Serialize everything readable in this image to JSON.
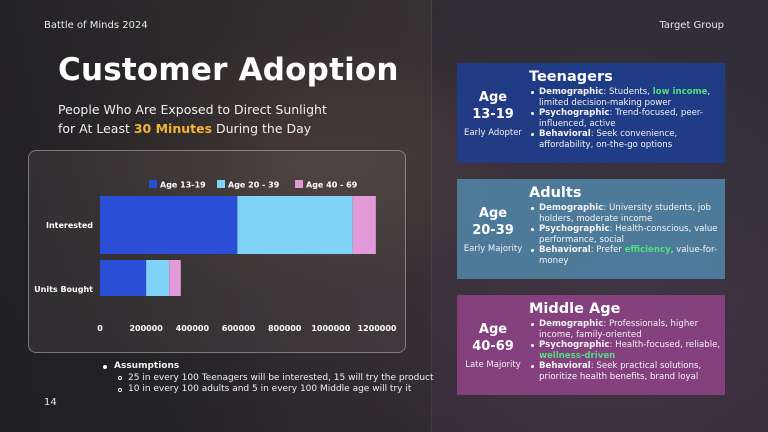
{
  "header": {
    "event": "Battle of Minds 2024",
    "section": "Target Group"
  },
  "title": "Customer Adoption",
  "subtitle": {
    "line1": "People Who Are Exposed to Direct Sunlight",
    "line2_pre": "for At Least ",
    "line2_highlight": "30 Minutes",
    "line2_post": " During the Day"
  },
  "chart_data": {
    "type": "bar",
    "orientation": "horizontal",
    "stacked": true,
    "categories": [
      "Interested",
      "Units Bought"
    ],
    "series": [
      {
        "name": "Age 13-19",
        "color": "#2a4fd6",
        "values": [
          595000,
          200000
        ]
      },
      {
        "name": "Age 20 - 39",
        "color": "#7fd3f7",
        "values": [
          500000,
          100000
        ]
      },
      {
        "name": "Age 40 - 69",
        "color": "#e29ad8",
        "values": [
          100000,
          50000
        ]
      }
    ],
    "x_ticks": [
      "0",
      "200000",
      "400000",
      "600000",
      "800000",
      "1000000",
      "1200000"
    ],
    "xlim": [
      0,
      1200000
    ],
    "legend_position": "top",
    "grid": false
  },
  "assumptions": {
    "heading": "Assumptions",
    "items": [
      "25 in every 100 Teenagers will be interested, 15 will try the product",
      "10 in every 100 adults and 5 in every 100 Middle age will try it"
    ]
  },
  "page_number": "14",
  "segments": [
    {
      "title": "Teenagers",
      "age_line1": "Age",
      "age_line2": "13-19",
      "stage": "Early Adopter",
      "demographic_label": "Demographic",
      "demographic_pre": ": Students, ",
      "demographic_highlight": "low income",
      "demographic_post": ", limited decision-making power",
      "psychographic_label": "Psychographic",
      "psychographic_text": ": Trend-focused, peer-influenced, active",
      "behavioral_label": "Behavioral",
      "behavioral_text": ": Seek convenience, affordability, on-the-go options"
    },
    {
      "title": "Adults",
      "age_line1": "Age",
      "age_line2": "20-39",
      "stage": "Early Majority",
      "demographic_label": "Demographic",
      "demographic_text": ": University students, job holders, moderate income",
      "psychographic_label": "Psychographic",
      "psychographic_text": ": Health-conscious, value performance, social",
      "behavioral_label": "Behavioral",
      "behavioral_pre": ": Prefer ",
      "behavioral_highlight": "efficiency",
      "behavioral_post": ", value-for-money"
    },
    {
      "title": "Middle Age",
      "age_line1": "Age",
      "age_line2": "40-69",
      "stage": "Late Majority",
      "demographic_label": "Demographic",
      "demographic_text": ": Professionals, higher income, family-oriented",
      "psychographic_label": "Psychographic",
      "psychographic_pre": ": Health-focused, reliable, ",
      "psychographic_highlight": "wellness-driven",
      "behavioral_label": "Behavioral",
      "behavioral_text": ": Seek practical solutions, prioritize health benefits, brand loyal"
    }
  ]
}
